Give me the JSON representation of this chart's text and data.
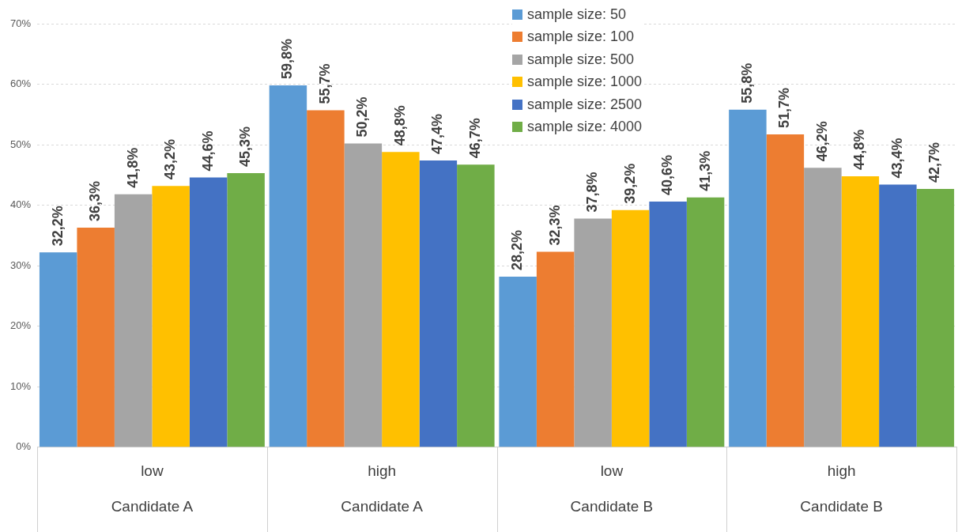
{
  "chart_data": {
    "type": "bar",
    "categories": [
      "low\nCandidate A",
      "high\nCandidate A",
      "low\nCandidate B",
      "high\nCandidate B"
    ],
    "series": [
      {
        "name": "sample size: 50",
        "color": "#5b9bd5",
        "values": [
          32.2,
          59.8,
          28.2,
          55.8
        ],
        "value_labels": [
          "32,2%",
          "59,8%",
          "28,2%",
          "55,8%"
        ]
      },
      {
        "name": "sample size: 100",
        "color": "#ed7d31",
        "values": [
          36.3,
          55.7,
          32.3,
          51.7
        ],
        "value_labels": [
          "36,3%",
          "55,7%",
          "32,3%",
          "51,7%"
        ]
      },
      {
        "name": "sample size: 500",
        "color": "#a5a5a5",
        "values": [
          41.8,
          50.2,
          37.8,
          46.2
        ],
        "value_labels": [
          "41,8%",
          "50,2%",
          "37,8%",
          "46,2%"
        ]
      },
      {
        "name": "sample size: 1000",
        "color": "#ffc000",
        "values": [
          43.2,
          48.8,
          39.2,
          44.8
        ],
        "value_labels": [
          "43,2%",
          "48,8%",
          "39,2%",
          "44,8%"
        ]
      },
      {
        "name": "sample size: 2500",
        "color": "#4472c4",
        "values": [
          44.6,
          47.4,
          40.6,
          43.4
        ],
        "value_labels": [
          "44,6%",
          "47,4%",
          "40,6%",
          "43,4%"
        ]
      },
      {
        "name": "sample size: 4000",
        "color": "#70ad47",
        "values": [
          45.3,
          46.7,
          41.3,
          42.7
        ],
        "value_labels": [
          "45,3%",
          "46,7%",
          "41,3%",
          "42,7%"
        ]
      }
    ],
    "ylim": [
      0,
      70
    ],
    "yticks": [
      {
        "value": 0,
        "label": "0%"
      },
      {
        "value": 10,
        "label": "10%"
      },
      {
        "value": 20,
        "label": "20%"
      },
      {
        "value": 30,
        "label": "30%"
      },
      {
        "value": 40,
        "label": "40%"
      },
      {
        "value": 50,
        "label": "50%"
      },
      {
        "value": 60,
        "label": "60%"
      },
      {
        "value": 70,
        "label": "70%"
      }
    ],
    "grid": "y",
    "legend": "top right"
  }
}
